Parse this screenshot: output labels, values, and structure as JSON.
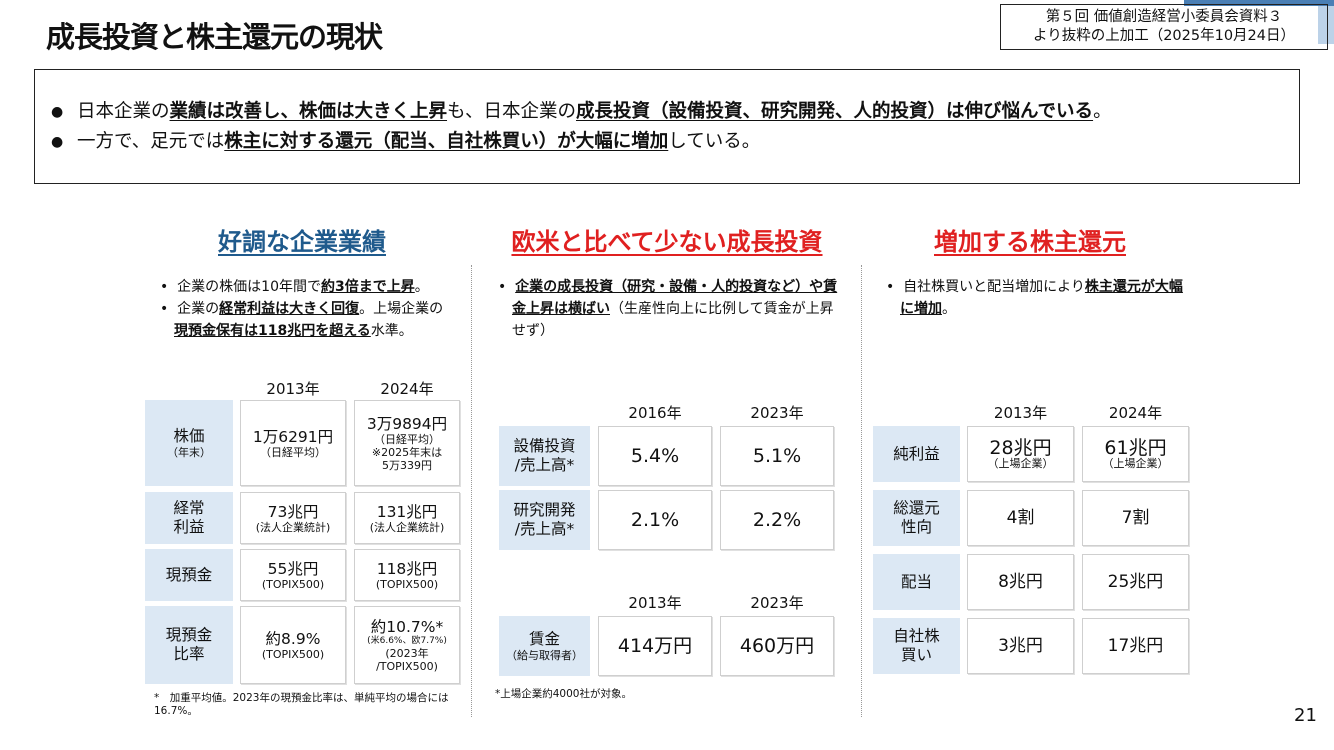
{
  "header": {
    "title": "成長投資と株主還元の現状",
    "source_line1": "第５回 価値創造経営小委員会資料３",
    "source_line2": "より抜粋の上加工（2025年10月24日）"
  },
  "summary": {
    "b1_a": "日本企業の",
    "b1_b": "業績は改善し、株価は大きく上昇",
    "b1_c": "も、日本企業の",
    "b1_d": "成長投資（設備投資、研究開発、人的投資）は伸び悩んでいる",
    "b1_e": "。",
    "b2_a": "一方で、足元では",
    "b2_b": "株主に対する還元（配当、自社株買い）が大幅に増加",
    "b2_c": "している。"
  },
  "col1": {
    "heading": "好調な企業業績",
    "n1_a": "企業の株価は10年間で",
    "n1_b": "約3倍まで上昇",
    "n1_c": "。",
    "n2_a": "企業の",
    "n2_b": "経常利益は大きく回復",
    "n2_c": "。上場企業の",
    "n2_d": "現預金保有は118兆円を超える",
    "n2_e": "水準。",
    "year1": "2013年",
    "year2": "2024年",
    "r1_label": "株価",
    "r1_sub": "（年末）",
    "r1_v1": "1万6291円",
    "r1_v1s": "（日経平均）",
    "r1_v2": "3万9894円",
    "r1_v2s1": "（日経平均）",
    "r1_v2s2": "※2025年末は",
    "r1_v2s3": "5万339円",
    "r2_label1": "経常",
    "r2_label2": "利益",
    "r2_v1": "73兆円",
    "r2_v1s": "(法人企業統計)",
    "r2_v2": "131兆円",
    "r2_v2s": "(法人企業統計)",
    "r3_label": "現預金",
    "r3_v1": "55兆円",
    "r3_v1s": "(TOPIX500)",
    "r3_v2": "118兆円",
    "r3_v2s": "(TOPIX500)",
    "r4_label1": "現預金",
    "r4_label2": "比率",
    "r4_v1": "約8.9%",
    "r4_v1s": "(TOPIX500)",
    "r4_v2": "約10.7%*",
    "r4_v2s1": "(米6.6%、欧7.7%)",
    "r4_v2s2": "(2023年",
    "r4_v2s3": "/TOPIX500)",
    "foot": "*　加重平均値。2023年の現預金比率は、単純平均の場合には16.7%。"
  },
  "col2": {
    "heading": "欧米と比べて少ない成長投資",
    "n1_a": "企業の成長投資（研究・設備・人的投資など）や賃金上昇は横ばい",
    "n1_b": "（生産性向上に比例して賃金が上昇せず）",
    "year1": "2016年",
    "year2": "2023年",
    "r1_label1": "設備投資",
    "r1_label2": "/売上高*",
    "r1_v1": "5.4%",
    "r1_v2": "5.1%",
    "r2_label1": "研究開発",
    "r2_label2": "/売上高*",
    "r2_v1": "2.1%",
    "r2_v2": "2.2%",
    "year3": "2013年",
    "year4": "2023年",
    "r3_label": "賃金",
    "r3_sub": "（給与取得者）",
    "r3_v1": "414万円",
    "r3_v2": "460万円",
    "foot": "*上場企業約4000社が対象。"
  },
  "col3": {
    "heading": "増加する株主還元",
    "n1_a": "自社株買いと配当増加により",
    "n1_b": "株主還元が大幅に増加",
    "n1_c": "。",
    "year1": "2013年",
    "year2": "2024年",
    "r1_label": "純利益",
    "r1_v1": "28兆円",
    "r1_v1s": "（上場企業）",
    "r1_v2": "61兆円",
    "r1_v2s": "（上場企業）",
    "r2_label1": "総還元",
    "r2_label2": "性向",
    "r2_v1": "4割",
    "r2_v2": "7割",
    "r3_label": "配当",
    "r3_v1": "8兆円",
    "r3_v2": "25兆円",
    "r4_label1": "自社株",
    "r4_label2": "買い",
    "r4_v1": "3兆円",
    "r4_v2": "17兆円"
  },
  "page_number": "21"
}
